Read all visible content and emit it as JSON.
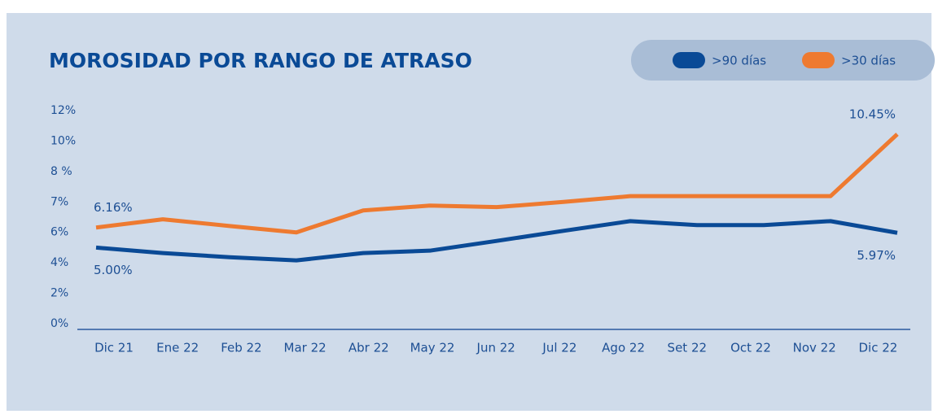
{
  "chart_data": {
    "type": "line",
    "title": "MOROSIDAD POR RANGO DE ATRASO",
    "categories": [
      "Dic 21",
      "Ene 22",
      "Feb 22",
      "Mar 22",
      "Abr 22",
      "May 22",
      "Jun 22",
      "Jul 22",
      "Ago 22",
      "Set 22",
      "Oct 22",
      "Nov 22",
      "Dic 22"
    ],
    "series": [
      {
        "name": ">90 días",
        "color": "#0a4a96",
        "values": [
          5.0,
          4.64,
          4.37,
          4.16,
          4.64,
          4.8,
          5.44,
          6.05,
          6.37,
          6.24,
          6.24,
          6.37,
          5.97
        ],
        "value_labels": [
          "5.00%",
          null,
          null,
          null,
          null,
          null,
          null,
          null,
          null,
          null,
          null,
          null,
          "5.97%"
        ]
      },
      {
        "name": ">30 días",
        "color": "#ee7a30",
        "values": [
          6.16,
          6.43,
          6.21,
          6.0,
          6.72,
          6.88,
          6.83,
          7.0,
          7.19,
          7.19,
          7.19,
          7.19,
          10.45
        ],
        "value_labels": [
          "6.16%",
          null,
          null,
          null,
          null,
          null,
          null,
          null,
          null,
          null,
          null,
          null,
          "10.45%"
        ]
      }
    ],
    "ylim": [
      0,
      12
    ],
    "yticks": [
      {
        "value": 0,
        "label": "0%"
      },
      {
        "value": 2,
        "label": "2%"
      },
      {
        "value": 4,
        "label": "4%"
      },
      {
        "value": 6,
        "label": "6%"
      },
      {
        "value": 7,
        "label": "7%"
      },
      {
        "value": 8,
        "label": "8 %"
      },
      {
        "value": 10,
        "label": "10%"
      },
      {
        "value": 12,
        "label": "12%"
      }
    ],
    "legend": "top-right"
  }
}
